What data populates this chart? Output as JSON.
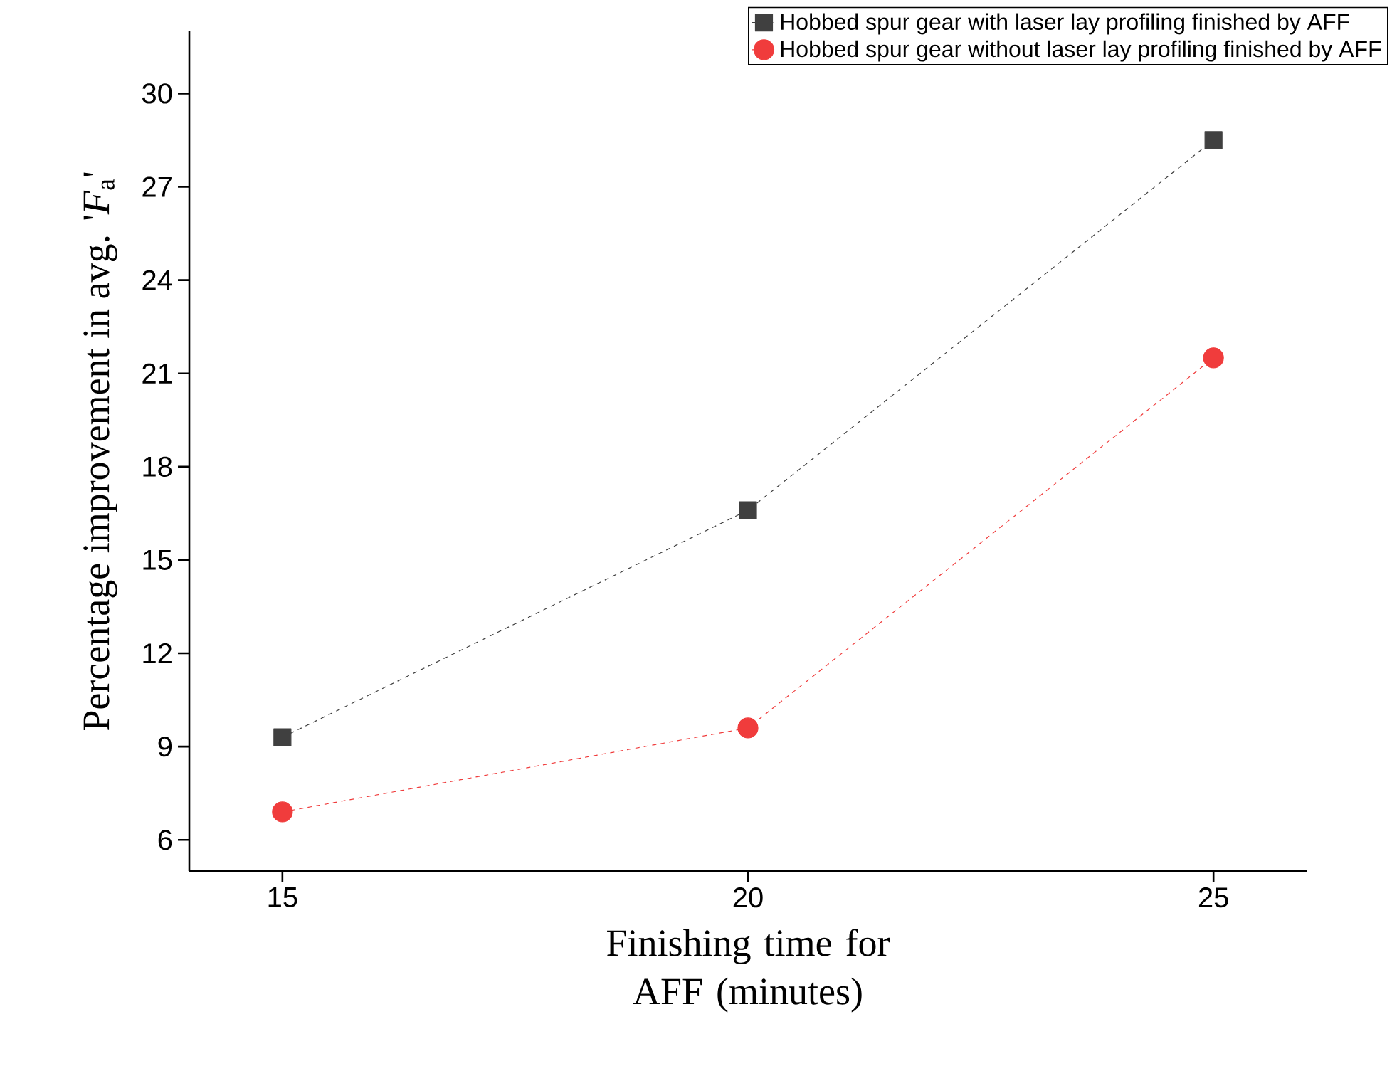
{
  "chart_data": {
    "type": "line",
    "xlabel": "Finishing time for AFF (minutes)",
    "ylabel": "Percentage improvement in avg. '*F*$_{a}$'",
    "x": [
      15,
      20,
      25
    ],
    "series": [
      {
        "name": "Hobbed spur gear with laser lay profiling finished by AFF",
        "color": "#404040",
        "marker": "square",
        "values": [
          9.3,
          16.6,
          28.5
        ]
      },
      {
        "name": "Hobbed spur gear without laser lay profiling finished by AFF",
        "color": "#f03c3c",
        "marker": "circle",
        "values": [
          6.9,
          9.6,
          21.5
        ]
      }
    ],
    "xlim": [
      14,
      26
    ],
    "ylim": [
      5,
      32
    ],
    "xticks": [
      15,
      20,
      25
    ],
    "yticks": [
      6,
      9,
      12,
      15,
      18,
      21,
      24,
      27,
      30
    ],
    "line_style": "dashed",
    "legend": "top right",
    "grid": false
  }
}
